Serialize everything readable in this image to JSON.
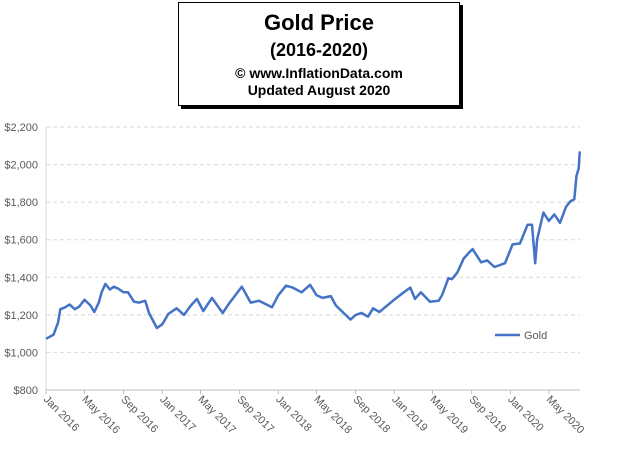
{
  "title_box": {
    "title": "Gold Price",
    "subtitle": "(2016-2020)",
    "copyright": "© www.InflationData.com",
    "updated": "Updated August 2020"
  },
  "colors": {
    "series": "#4472C4",
    "grid": "#d9d9d9",
    "axis_text": "#595959"
  },
  "chart_data": {
    "type": "line",
    "title": "Gold Price",
    "subtitle": "(2016-2020)",
    "xlabel": "",
    "ylabel": "",
    "ylim": [
      800,
      2200
    ],
    "xlim": [
      "2016-01-01",
      "2020-08-07"
    ],
    "yticks": [
      800,
      1000,
      1200,
      1400,
      1600,
      1800,
      2000,
      2200
    ],
    "ytick_labels": [
      "$800",
      "$1,000",
      "$1,200",
      "$1,400",
      "$1,600",
      "$1,800",
      "$2,000",
      "$2,200"
    ],
    "xticks": [
      "2016-01-01",
      "2016-05-01",
      "2016-09-01",
      "2017-01-01",
      "2017-05-01",
      "2017-09-01",
      "2018-01-01",
      "2018-05-01",
      "2018-09-01",
      "2019-01-01",
      "2019-05-01",
      "2019-09-01",
      "2020-01-01",
      "2020-05-01"
    ],
    "xtick_labels": [
      "Jan 2016",
      "May 2016",
      "Sep 2016",
      "Jan 2017",
      "May 2017",
      "Sep 2017",
      "Jan 2018",
      "May 2018",
      "Sep 2018",
      "Jan 2019",
      "May 2019",
      "Sep 2019",
      "Jan 2020",
      "May 2020"
    ],
    "grid": true,
    "legend_position": "bottom-right",
    "series": [
      {
        "name": "Gold",
        "points": [
          [
            "2016-01-04",
            1075
          ],
          [
            "2016-01-25",
            1095
          ],
          [
            "2016-02-08",
            1160
          ],
          [
            "2016-02-15",
            1230
          ],
          [
            "2016-03-01",
            1240
          ],
          [
            "2016-03-15",
            1255
          ],
          [
            "2016-04-01",
            1230
          ],
          [
            "2016-04-15",
            1245
          ],
          [
            "2016-05-01",
            1280
          ],
          [
            "2016-05-20",
            1250
          ],
          [
            "2016-06-01",
            1215
          ],
          [
            "2016-06-15",
            1265
          ],
          [
            "2016-06-24",
            1320
          ],
          [
            "2016-07-06",
            1365
          ],
          [
            "2016-07-20",
            1335
          ],
          [
            "2016-08-01",
            1350
          ],
          [
            "2016-08-15",
            1340
          ],
          [
            "2016-09-01",
            1320
          ],
          [
            "2016-09-15",
            1320
          ],
          [
            "2016-10-04",
            1270
          ],
          [
            "2016-10-20",
            1265
          ],
          [
            "2016-11-08",
            1275
          ],
          [
            "2016-11-20",
            1210
          ],
          [
            "2016-12-15",
            1130
          ],
          [
            "2017-01-01",
            1150
          ],
          [
            "2017-01-20",
            1205
          ],
          [
            "2017-02-15",
            1235
          ],
          [
            "2017-03-10",
            1200
          ],
          [
            "2017-04-01",
            1250
          ],
          [
            "2017-04-20",
            1285
          ],
          [
            "2017-05-10",
            1220
          ],
          [
            "2017-06-06",
            1290
          ],
          [
            "2017-07-10",
            1210
          ],
          [
            "2017-08-01",
            1265
          ],
          [
            "2017-09-08",
            1350
          ],
          [
            "2017-10-06",
            1265
          ],
          [
            "2017-11-01",
            1275
          ],
          [
            "2017-12-12",
            1240
          ],
          [
            "2018-01-01",
            1305
          ],
          [
            "2018-01-25",
            1355
          ],
          [
            "2018-02-15",
            1345
          ],
          [
            "2018-03-15",
            1320
          ],
          [
            "2018-04-11",
            1360
          ],
          [
            "2018-05-01",
            1305
          ],
          [
            "2018-05-20",
            1290
          ],
          [
            "2018-06-15",
            1300
          ],
          [
            "2018-07-01",
            1250
          ],
          [
            "2018-08-16",
            1175
          ],
          [
            "2018-09-01",
            1200
          ],
          [
            "2018-09-20",
            1210
          ],
          [
            "2018-10-10",
            1190
          ],
          [
            "2018-10-26",
            1235
          ],
          [
            "2018-11-15",
            1215
          ],
          [
            "2018-12-31",
            1280
          ],
          [
            "2019-01-31",
            1320
          ],
          [
            "2019-02-20",
            1345
          ],
          [
            "2019-03-07",
            1285
          ],
          [
            "2019-03-25",
            1320
          ],
          [
            "2019-04-23",
            1270
          ],
          [
            "2019-05-20",
            1275
          ],
          [
            "2019-05-31",
            1305
          ],
          [
            "2019-06-20",
            1395
          ],
          [
            "2019-07-01",
            1390
          ],
          [
            "2019-07-18",
            1425
          ],
          [
            "2019-08-07",
            1500
          ],
          [
            "2019-08-26",
            1535
          ],
          [
            "2019-09-04",
            1550
          ],
          [
            "2019-10-01",
            1480
          ],
          [
            "2019-10-20",
            1490
          ],
          [
            "2019-11-12",
            1455
          ],
          [
            "2019-12-15",
            1475
          ],
          [
            "2020-01-08",
            1575
          ],
          [
            "2020-01-31",
            1580
          ],
          [
            "2020-02-24",
            1680
          ],
          [
            "2020-03-09",
            1680
          ],
          [
            "2020-03-19",
            1475
          ],
          [
            "2020-03-25",
            1600
          ],
          [
            "2020-04-14",
            1745
          ],
          [
            "2020-05-01",
            1700
          ],
          [
            "2020-05-18",
            1735
          ],
          [
            "2020-06-05",
            1690
          ],
          [
            "2020-06-24",
            1775
          ],
          [
            "2020-07-08",
            1805
          ],
          [
            "2020-07-20",
            1815
          ],
          [
            "2020-07-27",
            1940
          ],
          [
            "2020-08-03",
            1980
          ],
          [
            "2020-08-06",
            2065
          ]
        ]
      }
    ]
  }
}
